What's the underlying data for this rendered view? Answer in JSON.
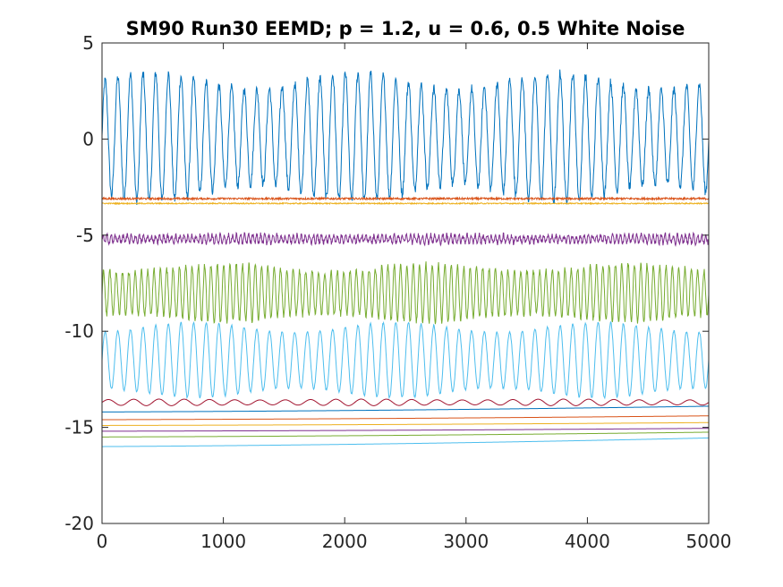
{
  "chart_data": {
    "type": "line",
    "title": "SM90 Run30 EEMD; p = 1.2, u = 0.6, 0.5 White Noise",
    "xlabel": "",
    "ylabel": "",
    "xlim": [
      0,
      5000
    ],
    "ylim": [
      -20,
      5
    ],
    "x_ticks": [
      0,
      1000,
      2000,
      3000,
      4000,
      5000
    ],
    "y_ticks": [
      5,
      0,
      -5,
      -10,
      -15,
      -20
    ],
    "grid": false,
    "legend": "none",
    "series": [
      {
        "color": "#0072BD",
        "kind": "oscillation",
        "center": 0.1,
        "amplitude": 2.9,
        "cycles": 48,
        "noise": 0.25
      },
      {
        "color": "#D95319",
        "kind": "noise",
        "center": -3.1,
        "amplitude": 0.05,
        "cycles": 0,
        "noise": 0.05
      },
      {
        "color": "#EDB120",
        "kind": "noise",
        "center": -3.35,
        "amplitude": 0.03,
        "cycles": 0,
        "noise": 0.03
      },
      {
        "color": "#7E2F8E",
        "kind": "oscillation",
        "center": -5.2,
        "amplitude": 0.2,
        "cycles": 150,
        "noise": 0.12
      },
      {
        "color": "#77AC30",
        "kind": "oscillation",
        "center": -8.0,
        "amplitude": 1.3,
        "cycles": 96,
        "noise": 0.15
      },
      {
        "color": "#4DBEEE",
        "kind": "oscillation",
        "center": -11.5,
        "amplitude": 1.7,
        "cycles": 48,
        "noise": 0.05
      },
      {
        "color": "#A2142F",
        "kind": "oscillation",
        "center": -13.7,
        "amplitude": 0.15,
        "cycles": 24,
        "noise": 0.0
      },
      {
        "color": "#0072BD",
        "kind": "trend",
        "start": -14.2,
        "end": -13.9,
        "noise": 0.0
      },
      {
        "color": "#D95319",
        "kind": "trend",
        "start": -14.6,
        "end": -14.4,
        "noise": 0.0
      },
      {
        "color": "#EDB120",
        "kind": "trend",
        "start": -14.9,
        "end": -14.75,
        "noise": 0.0
      },
      {
        "color": "#7E2F8E",
        "kind": "trend",
        "start": -15.2,
        "end": -15.05,
        "noise": 0.0
      },
      {
        "color": "#77AC30",
        "kind": "trend",
        "start": -15.5,
        "end": -15.25,
        "noise": 0.0
      },
      {
        "color": "#4DBEEE",
        "kind": "trend",
        "start": -16.0,
        "end": -15.55,
        "noise": 0.0
      }
    ]
  }
}
